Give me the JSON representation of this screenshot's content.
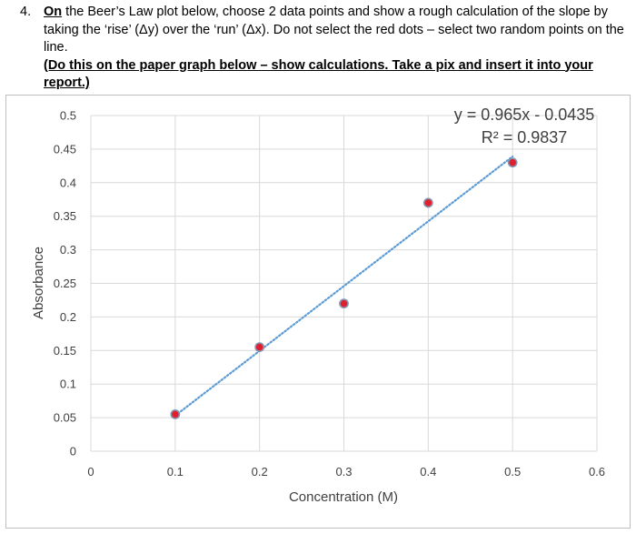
{
  "question": {
    "number": "4.",
    "lead": "On",
    "text": " the Beer’s Law plot below, choose 2 data points and show a rough calculation of the slope by taking the ‘rise’ (Δy) over the ‘run’ (Δx).  Do not select the red dots – select two random points on the line.",
    "instruction": "(Do this on the paper graph below – show calculations.  Take a pix and insert it into your report.)"
  },
  "chart_data": {
    "type": "scatter",
    "xlabel": "Concentration (M)",
    "ylabel": "Absorbance",
    "xlim": [
      0,
      0.6
    ],
    "ylim": [
      0,
      0.5
    ],
    "x_ticks": [
      "0",
      "0.1",
      "0.2",
      "0.3",
      "0.4",
      "0.5",
      "0.6"
    ],
    "y_ticks": [
      "0",
      "0.05",
      "0.1",
      "0.15",
      "0.2",
      "0.25",
      "0.3",
      "0.35",
      "0.4",
      "0.45",
      "0.5"
    ],
    "grid": true,
    "points": [
      {
        "x": 0.1,
        "y": 0.055
      },
      {
        "x": 0.2,
        "y": 0.155
      },
      {
        "x": 0.3,
        "y": 0.22
      },
      {
        "x": 0.4,
        "y": 0.37
      },
      {
        "x": 0.5,
        "y": 0.43
      }
    ],
    "trendline": {
      "slope": 0.965,
      "intercept": -0.0435,
      "x_range": [
        0.1,
        0.5
      ],
      "style": "dotted",
      "equation_label": "y = 0.965x - 0.0435",
      "r2_label": "R² = 0.9837"
    },
    "colors": {
      "marker_fill": "#e0202e",
      "marker_edge": "#8496b0",
      "trendline": "#5b9bd5",
      "grid": "#d9d9d9",
      "text": "#404040"
    }
  }
}
